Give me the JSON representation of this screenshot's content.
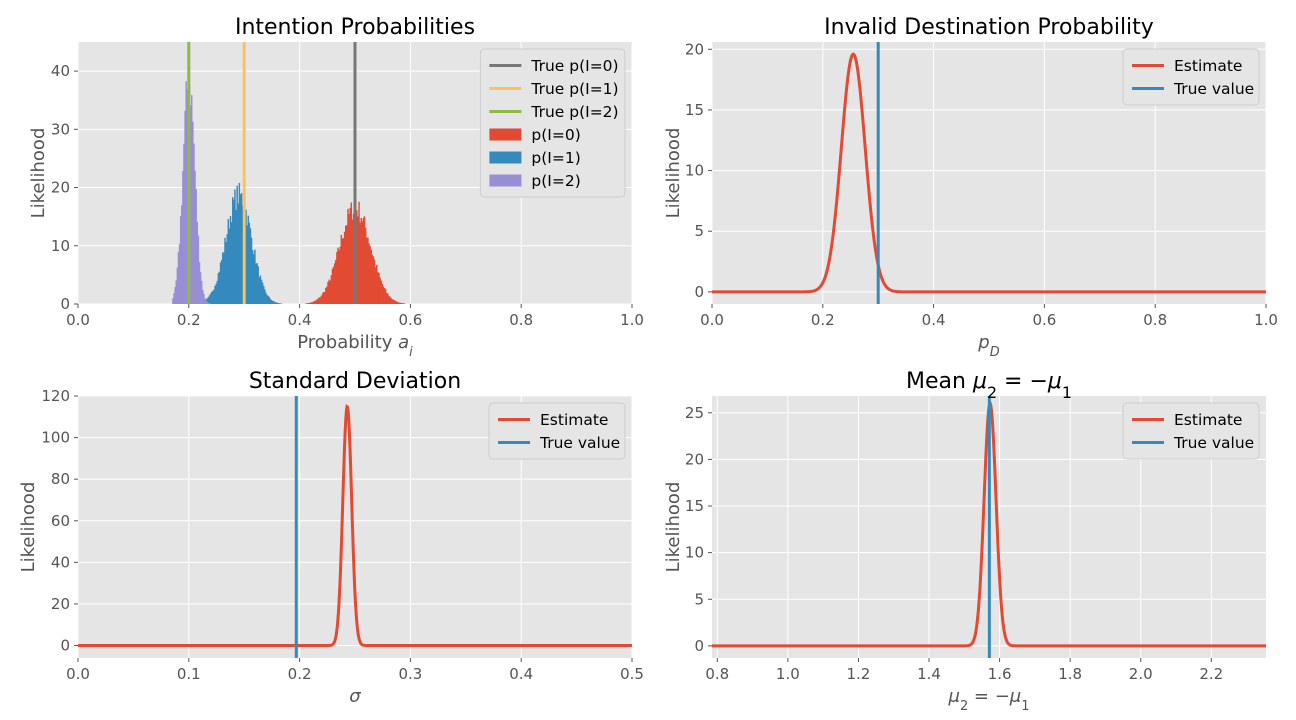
{
  "chart_data": [
    {
      "type": "histogram",
      "title": "Intention Probabilities",
      "xlabel": "Probability a_i",
      "xlabel_parts": [
        {
          "t": "Probability "
        },
        {
          "t": "a",
          "i": true
        },
        {
          "t": "i",
          "i": true,
          "sub": true
        }
      ],
      "ylabel": "Likelihood",
      "xlim": [
        0,
        1
      ],
      "ylim": [
        0,
        45
      ],
      "xticks": [
        0.0,
        0.2,
        0.4,
        0.6,
        0.8,
        1.0
      ],
      "xtick_labels": [
        "0.0",
        "0.2",
        "0.4",
        "0.6",
        "0.8",
        "1.0"
      ],
      "yticks": [
        0,
        10,
        20,
        30,
        40
      ],
      "ytick_labels": [
        "0",
        "10",
        "20",
        "30",
        "40"
      ],
      "grid": true,
      "legend_position": "top-right",
      "vlines": [
        {
          "name": "True p(I=0)",
          "x": 0.5,
          "color": "#777777"
        },
        {
          "name": "True p(I=1)",
          "x": 0.3,
          "color": "#FBC15E"
        },
        {
          "name": "True p(I=2)",
          "x": 0.2,
          "color": "#8EBA42"
        }
      ],
      "series": [
        {
          "name": "p(I=0)",
          "color": "#E24A33",
          "peak_x": 0.5,
          "peak_y": 16.5,
          "x_range": [
            0.41,
            0.59
          ]
        },
        {
          "name": "p(I=1)",
          "color": "#348ABD",
          "peak_x": 0.29,
          "peak_y": 18.7,
          "x_range": [
            0.22,
            0.37
          ]
        },
        {
          "name": "p(I=2)",
          "color": "#988ED5",
          "peak_x": 0.2,
          "peak_y": 38.5,
          "x_range": [
            0.17,
            0.24
          ]
        }
      ]
    },
    {
      "type": "line",
      "title": "Invalid Destination Probability",
      "xlabel": "p_D",
      "xlabel_parts": [
        {
          "t": "p",
          "i": true
        },
        {
          "t": "D",
          "i": true,
          "sub": true
        }
      ],
      "ylabel": "Likelihood",
      "xlim": [
        0,
        1
      ],
      "ylim": [
        -1,
        20.6
      ],
      "xticks": [
        0.0,
        0.2,
        0.4,
        0.6,
        0.8,
        1.0
      ],
      "xtick_labels": [
        "0.0",
        "0.2",
        "0.4",
        "0.6",
        "0.8",
        "1.0"
      ],
      "yticks": [
        0,
        5,
        10,
        15,
        20
      ],
      "ytick_labels": [
        "0",
        "5",
        "10",
        "15",
        "20"
      ],
      "grid": true,
      "legend_position": "top-right",
      "series": [
        {
          "name": "Estimate",
          "color": "#E24A33",
          "peak_x": 0.255,
          "peak_y": 19.6,
          "x_range": [
            0.19,
            0.33
          ]
        }
      ],
      "vlines": [
        {
          "name": "True value",
          "x": 0.3,
          "color": "#348ABD"
        }
      ]
    },
    {
      "type": "line",
      "title": "Standard Deviation",
      "xlabel": "σ",
      "xlabel_parts": [
        {
          "t": "σ",
          "i": true
        }
      ],
      "ylabel": "Likelihood",
      "xlim": [
        0,
        0.5
      ],
      "ylim": [
        -6,
        120
      ],
      "xticks": [
        0.0,
        0.1,
        0.2,
        0.3,
        0.4,
        0.5
      ],
      "xtick_labels": [
        "0.0",
        "0.1",
        "0.2",
        "0.3",
        "0.4",
        "0.5"
      ],
      "yticks": [
        0,
        20,
        40,
        60,
        80,
        100,
        120
      ],
      "ytick_labels": [
        "0",
        "20",
        "40",
        "60",
        "80",
        "100",
        "120"
      ],
      "grid": true,
      "legend_position": "top-right",
      "series": [
        {
          "name": "Estimate",
          "color": "#E24A33",
          "peak_x": 0.243,
          "peak_y": 115,
          "x_range": [
            0.23,
            0.256
          ]
        }
      ],
      "vlines": [
        {
          "name": "True value",
          "x": 0.197,
          "color": "#348ABD"
        }
      ]
    },
    {
      "type": "line",
      "title": "Mean μ₂ = −μ₁",
      "title_parts": [
        {
          "t": "Mean "
        },
        {
          "t": "μ",
          "i": true
        },
        {
          "t": "2",
          "sub": true
        },
        {
          "t": " = −"
        },
        {
          "t": "μ",
          "i": true
        },
        {
          "t": "1",
          "sub": true
        }
      ],
      "xlabel": "μ₂ = −μ₁",
      "xlabel_parts": [
        {
          "t": "μ",
          "i": true
        },
        {
          "t": "2",
          "sub": true
        },
        {
          "t": " = −"
        },
        {
          "t": "μ",
          "i": true
        },
        {
          "t": "1",
          "sub": true
        }
      ],
      "ylabel": "Likelihood",
      "xlim": [
        0.785,
        2.355
      ],
      "ylim": [
        -1.3,
        26.8
      ],
      "xticks": [
        0.8,
        1.0,
        1.2,
        1.4,
        1.6,
        1.8,
        2.0,
        2.2
      ],
      "xtick_labels": [
        "0.8",
        "1.0",
        "1.2",
        "1.4",
        "1.6",
        "1.8",
        "2.0",
        "2.2"
      ],
      "yticks": [
        0,
        5,
        10,
        15,
        20,
        25
      ],
      "ytick_labels": [
        "0",
        "5",
        "10",
        "15",
        "20",
        "25"
      ],
      "grid": true,
      "legend_position": "top-right",
      "series": [
        {
          "name": "Estimate",
          "color": "#E24A33",
          "peak_x": 1.573,
          "peak_y": 26,
          "x_range": [
            1.52,
            1.63
          ]
        }
      ],
      "vlines": [
        {
          "name": "True value",
          "x": 1.571,
          "color": "#348ABD"
        }
      ]
    }
  ]
}
